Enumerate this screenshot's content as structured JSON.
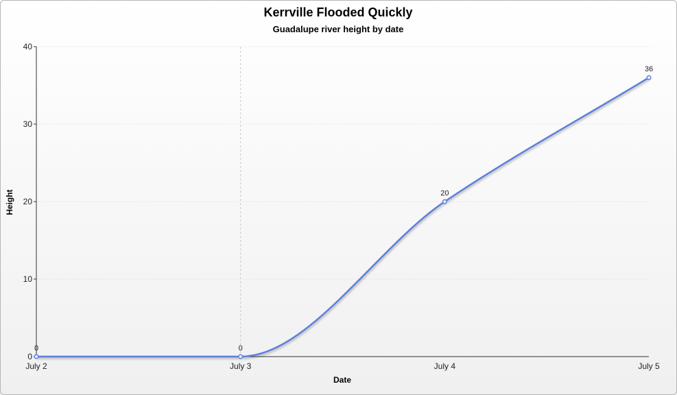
{
  "chart_data": {
    "type": "line",
    "title": "Kerrville Flooded Quickly",
    "subtitle": "Guadalupe river height by date",
    "xlabel": "Date",
    "ylabel": "Height",
    "categories": [
      "July 2",
      "July 3",
      "July 4",
      "July 5"
    ],
    "series": [
      {
        "values": [
          0,
          0,
          20,
          36
        ],
        "color": "#5b7fdb"
      }
    ],
    "ylim": [
      0,
      40
    ],
    "yticks": [
      0,
      10,
      20,
      30,
      40
    ],
    "grid": true,
    "smooth": true
  }
}
